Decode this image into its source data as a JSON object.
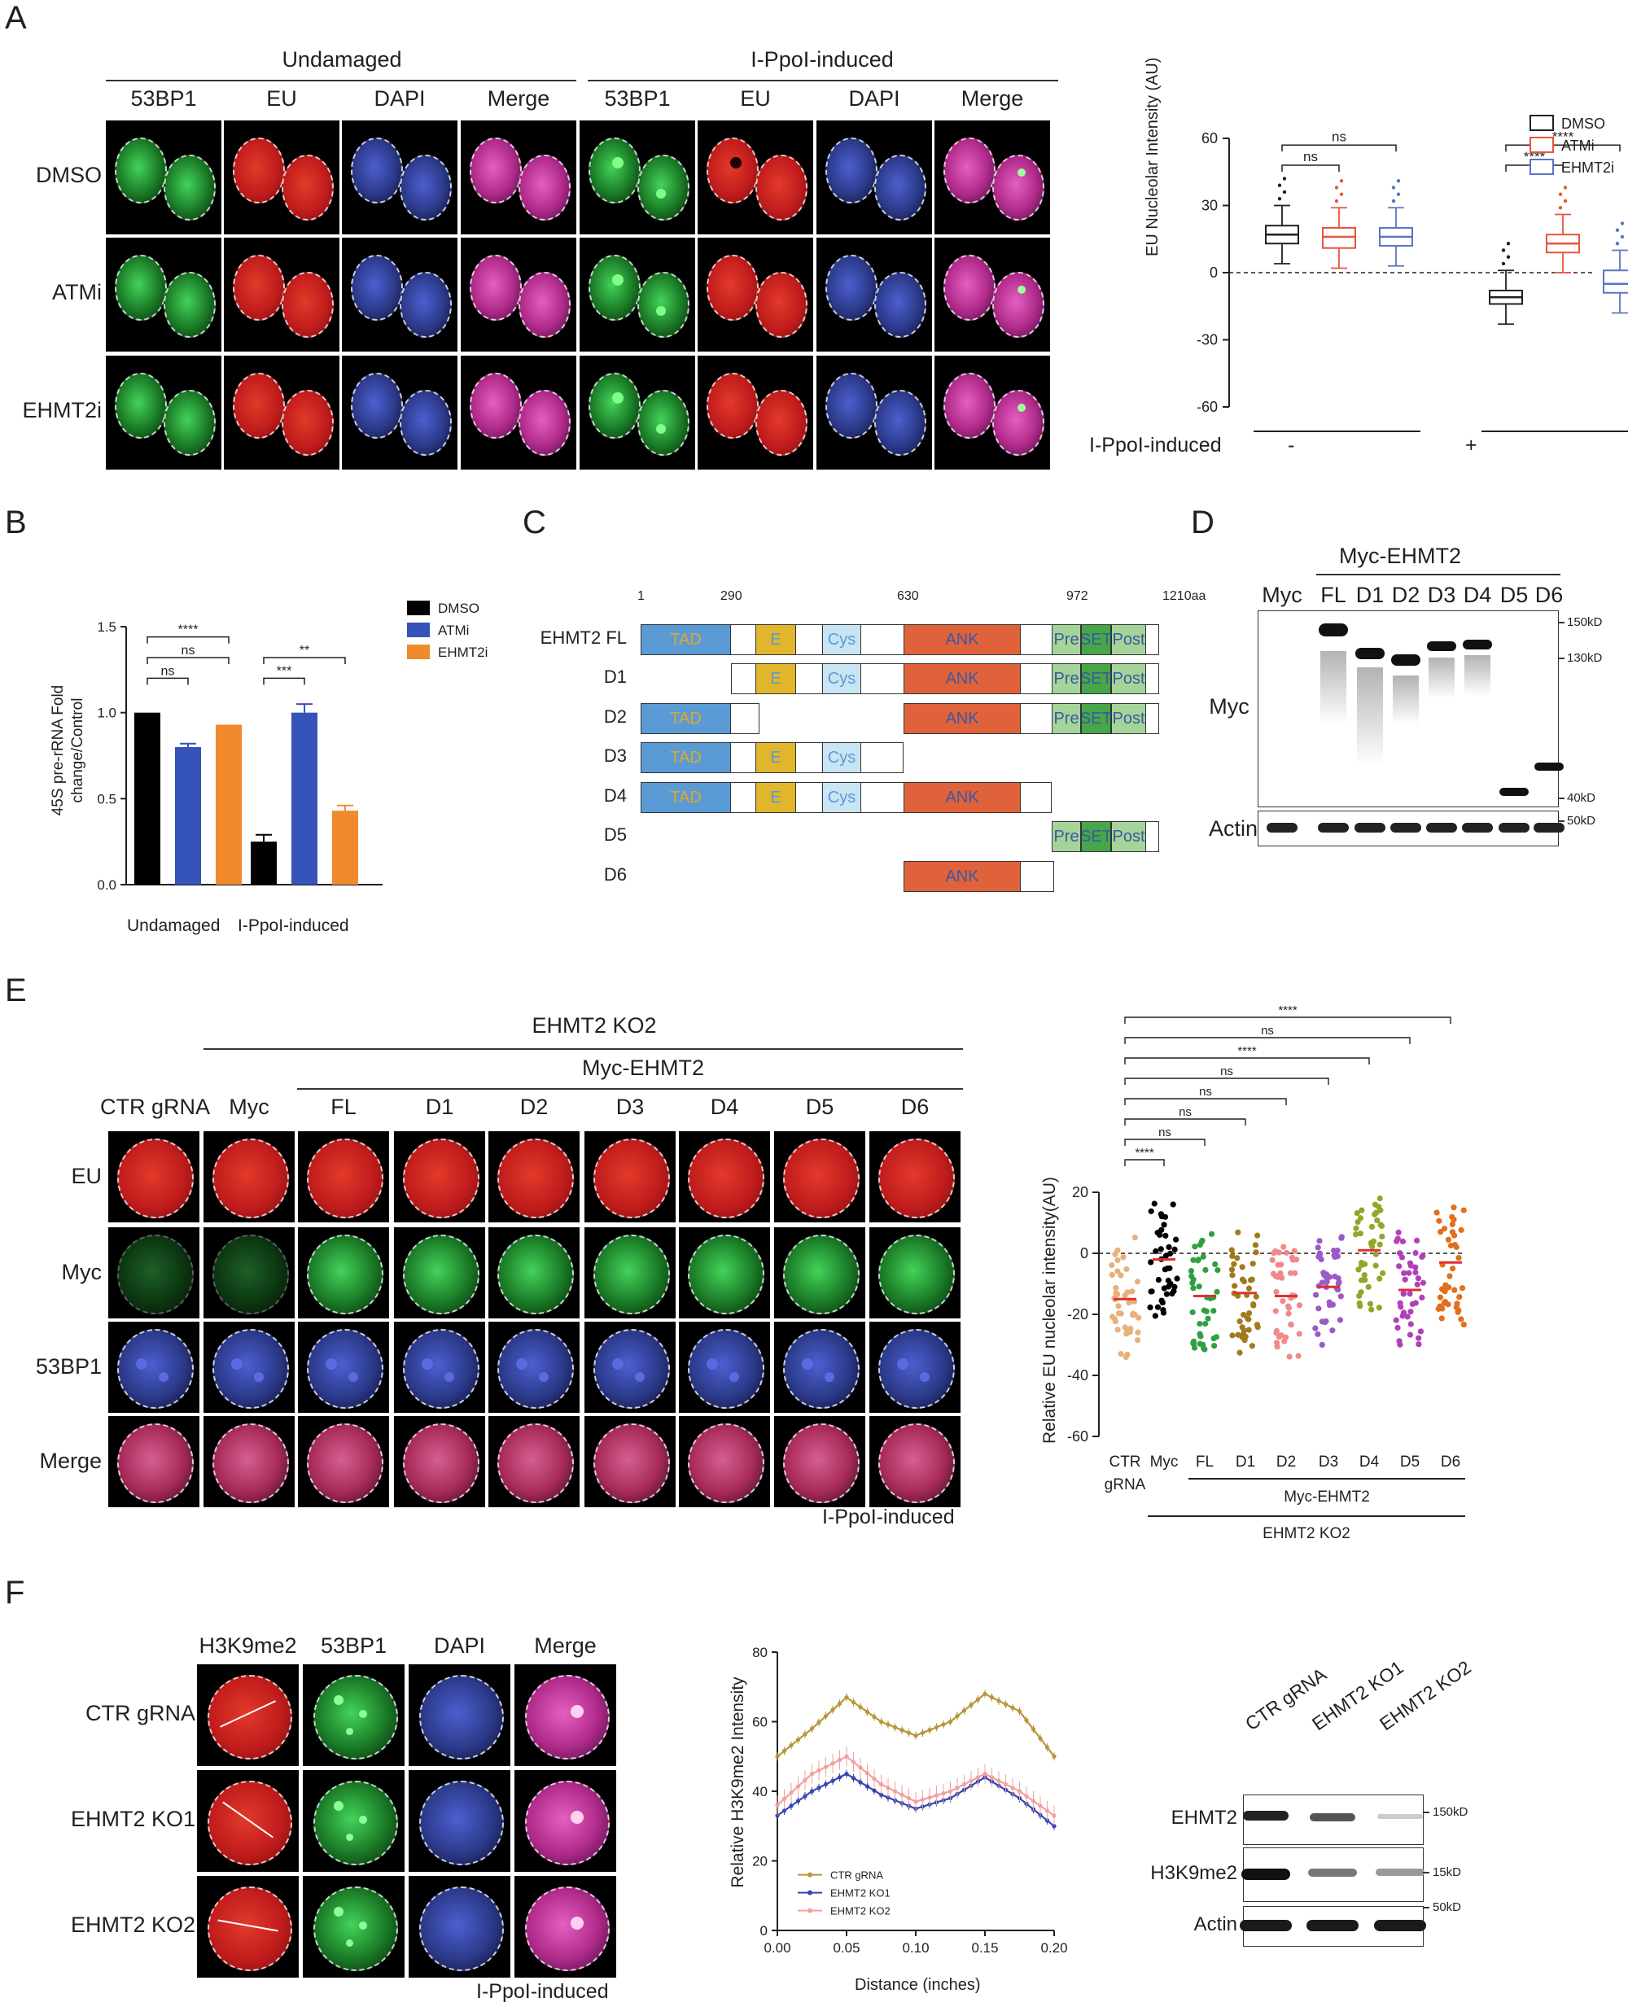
{
  "panels": {
    "A": "A",
    "B": "B",
    "C": "C",
    "D": "D",
    "E": "E",
    "F": "F"
  },
  "panelA": {
    "group_undamaged": "Undamaged",
    "group_ippol": "I-PpoI-induced",
    "channels": [
      "53BP1",
      "EU",
      "DAPI",
      "Merge",
      "53BP1",
      "EU",
      "DAPI",
      "Merge"
    ],
    "rows": [
      "DMSO",
      "ATMi",
      "EHMT2i"
    ],
    "chart": {
      "ylabel": "EU Nucleolar Intensity (AU)",
      "yticks": [
        "60",
        "30",
        "0",
        "-30",
        "-60"
      ],
      "xlabel": "I-PpoI-induced",
      "groups": [
        "-",
        "+"
      ],
      "legend": [
        "DMSO",
        "ATMi",
        "EHMT2i"
      ],
      "sig": [
        "ns",
        "ns",
        "****",
        "****"
      ]
    }
  },
  "panelB": {
    "ylabel": "45S pre-rRNA Fold change/Control",
    "yticks": [
      "1.5",
      "1.0",
      "0.5",
      "0.0"
    ],
    "groups": [
      "Undamaged",
      "I-PpoI-induced"
    ],
    "legend": [
      "DMSO",
      "ATMi",
      "EHMT2i"
    ],
    "sig": [
      "****",
      "ns",
      "ns",
      "**",
      "***"
    ]
  },
  "panelC": {
    "positions": [
      "1",
      "290",
      "630",
      "972",
      "1210aa"
    ],
    "rows": [
      "EHMT2 FL",
      "D1",
      "D2",
      "D3",
      "D4",
      "D5",
      "D6"
    ],
    "domains": {
      "tad": "TAD",
      "e": "E",
      "cys": "Cys",
      "ank": "ANK",
      "pre": "Pre",
      "set": "SET",
      "post": "Post"
    }
  },
  "panelD": {
    "header": "Myc-EHMT2",
    "lanes": [
      "Myc",
      "FL",
      "D1",
      "D2",
      "D3",
      "D4",
      "D5",
      "D6"
    ],
    "row_labels": [
      "Myc",
      "Actin"
    ],
    "markers": [
      "150kD",
      "130kD",
      "40kD",
      "50kD"
    ]
  },
  "panelE": {
    "header_ko": "EHMT2 KO2",
    "header_myc": "Myc-EHMT2",
    "columns": [
      "CTR gRNA",
      "Myc",
      "FL",
      "D1",
      "D2",
      "D3",
      "D4",
      "D5",
      "D6"
    ],
    "rows": [
      "EU",
      "Myc",
      "53BP1",
      "Merge"
    ],
    "footer": "I-PpoI-induced",
    "chart": {
      "ylabel": "Relative EU nucleolar intensity(AU)",
      "yticks": [
        "20",
        "0",
        "-20",
        "-40",
        "-60"
      ],
      "xcats": [
        "CTR",
        "Myc",
        "FL",
        "D1",
        "D2",
        "D3",
        "D4",
        "D5",
        "D6"
      ],
      "xcat_sub": "gRNA",
      "group1": "Myc-EHMT2",
      "group2": "EHMT2 KO2",
      "sig": [
        "****",
        "ns",
        "****",
        "ns",
        "ns",
        "ns",
        "ns",
        "****"
      ]
    }
  },
  "panelF": {
    "channels": [
      "H3K9me2",
      "53BP1",
      "DAPI",
      "Merge"
    ],
    "rows": [
      "CTR gRNA",
      "EHMT2 KO1",
      "EHMT2 KO2"
    ],
    "footer": "I-PpoI-induced",
    "chart": {
      "ylabel": "Relative H3K9me2 Intensity",
      "xlabel": "Distance (inches)",
      "yticks": [
        "80",
        "60",
        "40",
        "20",
        "0"
      ],
      "xticks": [
        "0.00",
        "0.05",
        "0.10",
        "0.15",
        "0.20"
      ],
      "legend": [
        "CTR  gRNA",
        "EHMT2 KO1",
        "EHMT2 KO2"
      ]
    },
    "blot": {
      "lanes": [
        "CTR gRNA",
        "EHMT2 KO1",
        "EHMT2 KO2"
      ],
      "rows": [
        "EHMT2",
        "H3K9me2",
        "Actin"
      ],
      "markers": [
        "150kD",
        "15kD",
        "50kD"
      ]
    }
  },
  "chart_data": [
    {
      "type": "box",
      "title": "",
      "ylabel": "EU Nucleolar Intensity (AU)",
      "ylim": [
        -60,
        60
      ],
      "categories": [
        "- DMSO",
        "- ATMi",
        "- EHMT2i",
        "+ DMSO",
        "+ ATMi",
        "+ EHMT2i"
      ],
      "median": [
        17,
        16,
        16,
        -11,
        13,
        -5
      ],
      "q1": [
        13,
        11,
        12,
        -14,
        9,
        -9
      ],
      "q3": [
        21,
        20,
        20,
        -8,
        17,
        1
      ]
    },
    {
      "type": "bar",
      "ylabel": "45S pre-rRNA Fold change/Control",
      "ylim": [
        0,
        1.5
      ],
      "categories": [
        "Undamaged",
        "I-PpoI-induced"
      ],
      "series": [
        {
          "name": "DMSO",
          "values": [
            1.0,
            0.25
          ]
        },
        {
          "name": "ATMi",
          "values": [
            0.8,
            1.0
          ]
        },
        {
          "name": "EHMT2i",
          "values": [
            0.93,
            0.43
          ]
        }
      ]
    },
    {
      "type": "scatter",
      "ylabel": "Relative EU nucleolar intensity(AU)",
      "ylim": [
        -60,
        20
      ],
      "categories": [
        "CTR gRNA",
        "Myc",
        "FL",
        "D1",
        "D2",
        "D3",
        "D4",
        "D5",
        "D6"
      ],
      "means": [
        -15,
        -2,
        -14,
        -13,
        -14,
        -11,
        1,
        -12,
        -3
      ]
    },
    {
      "type": "line",
      "ylabel": "Relative H3K9me2 Intensity",
      "xlabel": "Distance (inches)",
      "xlim": [
        0,
        0.2
      ],
      "ylim": [
        0,
        80
      ],
      "x": [
        0,
        0.025,
        0.05,
        0.075,
        0.1,
        0.125,
        0.15,
        0.175,
        0.2
      ],
      "series": [
        {
          "name": "CTR  gRNA",
          "values": [
            50,
            58,
            67,
            60,
            56,
            60,
            68,
            63,
            50
          ]
        },
        {
          "name": "EHMT2 KO1",
          "values": [
            33,
            40,
            45,
            39,
            35,
            38,
            44,
            38,
            30
          ]
        },
        {
          "name": "EHMT2 KO2",
          "values": [
            36,
            45,
            50,
            42,
            37,
            40,
            45,
            40,
            33
          ]
        }
      ]
    }
  ]
}
